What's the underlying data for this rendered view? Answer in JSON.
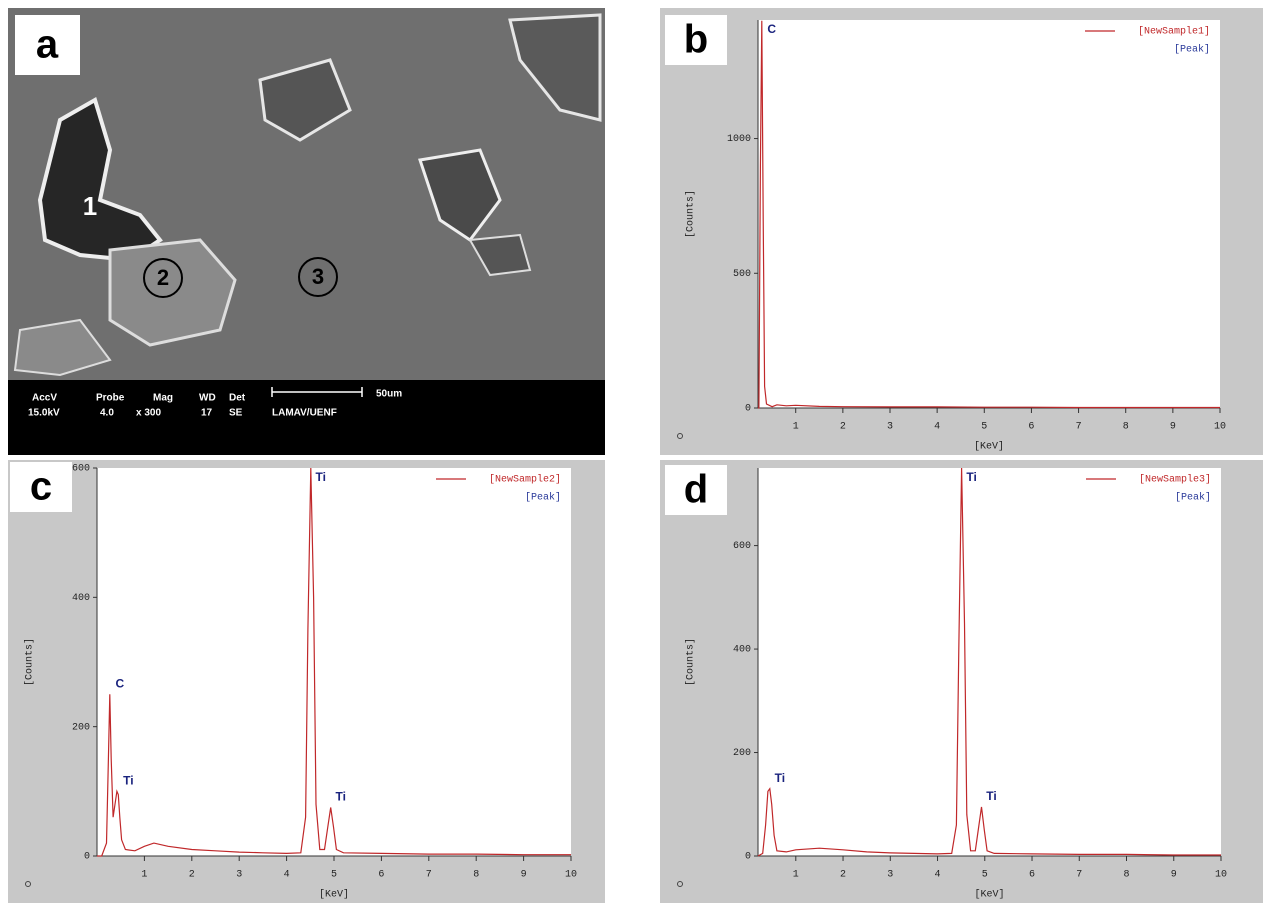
{
  "panel_a": {
    "label": "a",
    "region_labels": [
      "1",
      "2",
      "3"
    ],
    "info": {
      "headers": [
        "AccV",
        "Probe",
        "Mag",
        "WD",
        "Det"
      ],
      "values": [
        "15.0kV",
        "4.0",
        "x 300",
        "17",
        "SE"
      ],
      "scale": "50um",
      "lab": "LAMAV/UENF"
    }
  },
  "chart_data": [
    {
      "type": "line",
      "panel_label": "b",
      "xlabel": "[KeV]",
      "ylabel": "[Counts]",
      "x": [
        0.2,
        0.22,
        0.25,
        0.28,
        0.31,
        0.34,
        0.38,
        0.5,
        0.6,
        0.8,
        1,
        1.5,
        2,
        3,
        4,
        5,
        6,
        7,
        8,
        9,
        10
      ],
      "series": [
        {
          "name": "[NewSample1]",
          "color": "#c0282a",
          "values": [
            0,
            0,
            900,
            1437,
            700,
            80,
            15,
            5,
            12,
            8,
            10,
            6,
            5,
            4,
            4,
            3,
            3,
            2,
            2,
            2,
            2
          ]
        }
      ],
      "legend_note": "[Peak]",
      "annotations": [
        {
          "text": "C",
          "x": 0.28,
          "y": 1437
        }
      ],
      "xlim": [
        0.2,
        10
      ],
      "xticks": [
        1,
        2,
        3,
        4,
        5,
        6,
        7,
        8,
        9,
        10
      ],
      "ylim": [
        0,
        1440
      ],
      "yticks": [
        0,
        500,
        1000
      ]
    },
    {
      "type": "line",
      "panel_label": "c",
      "xlabel": "[KeV]",
      "ylabel": "[Counts]",
      "x": [
        0,
        0.1,
        0.2,
        0.24,
        0.27,
        0.3,
        0.34,
        0.38,
        0.42,
        0.45,
        0.48,
        0.52,
        0.6,
        0.8,
        1,
        1.2,
        1.5,
        2,
        2.5,
        3,
        3.5,
        4,
        4.3,
        4.4,
        4.45,
        4.51,
        4.57,
        4.62,
        4.7,
        4.8,
        4.87,
        4.93,
        4.99,
        5.05,
        5.2,
        6,
        7,
        8,
        9,
        10
      ],
      "series": [
        {
          "name": "[NewSample2]",
          "color": "#c0282a",
          "values": [
            0,
            0,
            20,
            150,
            250,
            150,
            60,
            80,
            100,
            95,
            60,
            25,
            10,
            8,
            15,
            20,
            15,
            10,
            8,
            6,
            5,
            4,
            5,
            60,
            350,
            600,
            400,
            80,
            10,
            10,
            45,
            75,
            45,
            10,
            5,
            4,
            3,
            3,
            2,
            2
          ]
        }
      ],
      "legend_note": "[Peak]",
      "annotations": [
        {
          "text": "C",
          "x": 0.27,
          "y": 250
        },
        {
          "text": "Ti",
          "x": 0.45,
          "y": 100
        },
        {
          "text": "Ti",
          "x": 4.51,
          "y": 600
        },
        {
          "text": "Ti",
          "x": 4.93,
          "y": 75
        }
      ],
      "xlim": [
        0,
        10
      ],
      "xticks": [
        1,
        2,
        3,
        4,
        5,
        6,
        7,
        8,
        9,
        10
      ],
      "ylim": [
        0,
        600
      ],
      "yticks": [
        0,
        200,
        400,
        600
      ]
    },
    {
      "type": "line",
      "panel_label": "d",
      "xlabel": "[KeV]",
      "ylabel": "[Counts]",
      "x": [
        0.2,
        0.3,
        0.36,
        0.41,
        0.45,
        0.49,
        0.54,
        0.6,
        0.8,
        1,
        1.5,
        2,
        2.5,
        3,
        3.5,
        4,
        4.3,
        4.4,
        4.45,
        4.51,
        4.57,
        4.62,
        4.7,
        4.8,
        4.87,
        4.93,
        4.99,
        5.05,
        5.2,
        6,
        7,
        8,
        9,
        10
      ],
      "series": [
        {
          "name": "[NewSample3]",
          "color": "#c0282a",
          "values": [
            0,
            5,
            60,
            125,
            130,
            100,
            40,
            10,
            8,
            12,
            15,
            12,
            8,
            6,
            5,
            4,
            5,
            60,
            400,
            750,
            450,
            80,
            10,
            10,
            55,
            95,
            50,
            10,
            5,
            4,
            3,
            3,
            2,
            2
          ]
        }
      ],
      "legend_note": "[Peak]",
      "annotations": [
        {
          "text": "Ti",
          "x": 0.45,
          "y": 130
        },
        {
          "text": "Ti",
          "x": 4.51,
          "y": 750
        },
        {
          "text": "Ti",
          "x": 4.93,
          "y": 95
        }
      ],
      "xlim": [
        0.2,
        10
      ],
      "xticks": [
        1,
        2,
        3,
        4,
        5,
        6,
        7,
        8,
        9,
        10
      ],
      "ylim": [
        0,
        750
      ],
      "yticks": [
        0,
        200,
        400,
        600
      ]
    }
  ]
}
